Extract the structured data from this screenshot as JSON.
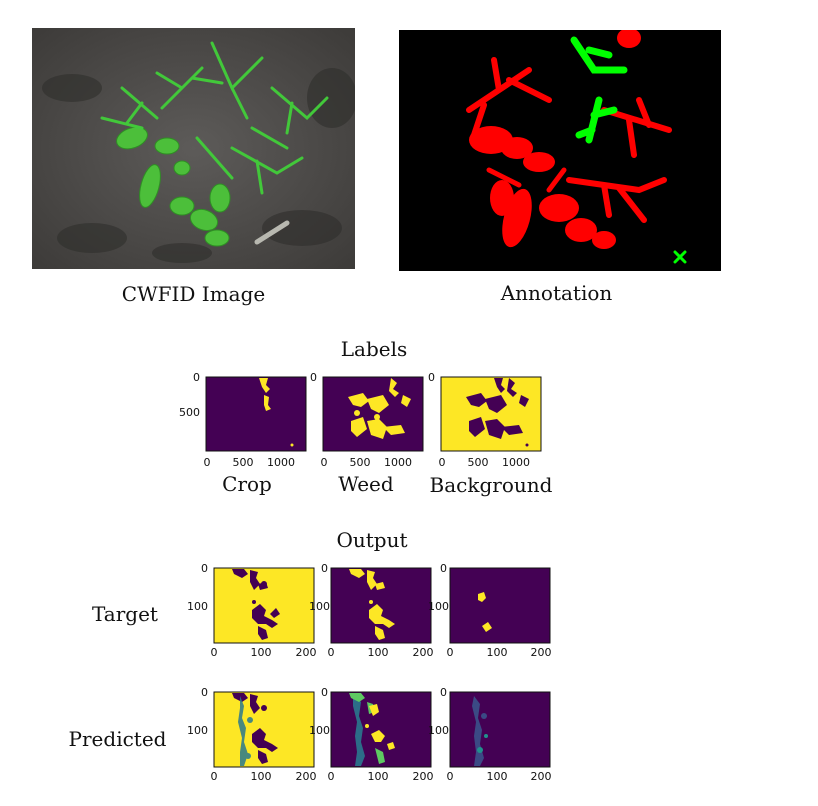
{
  "photos": {
    "source_caption": "CWFID Image",
    "annotation_caption": "Annotation",
    "annotation_colors": {
      "crop": "#ff0000",
      "weed": "#00ff00",
      "background": "#000000"
    }
  },
  "labels_section": {
    "title": "Labels",
    "plot_names": [
      "Crop",
      "Weed",
      "Background"
    ],
    "y_ticks": [
      "0",
      "500"
    ],
    "x_ticks": [
      "0",
      "500",
      "1000"
    ]
  },
  "output_section": {
    "title": "Output",
    "row_labels": [
      "Target",
      "Predicted"
    ],
    "y_ticks": [
      "0",
      "100"
    ],
    "x_ticks": [
      "0",
      "100",
      "200"
    ]
  },
  "colormap": {
    "low": "#440154",
    "mid": "#2a788e",
    "high": "#fde725",
    "accent": "#5ec962"
  }
}
